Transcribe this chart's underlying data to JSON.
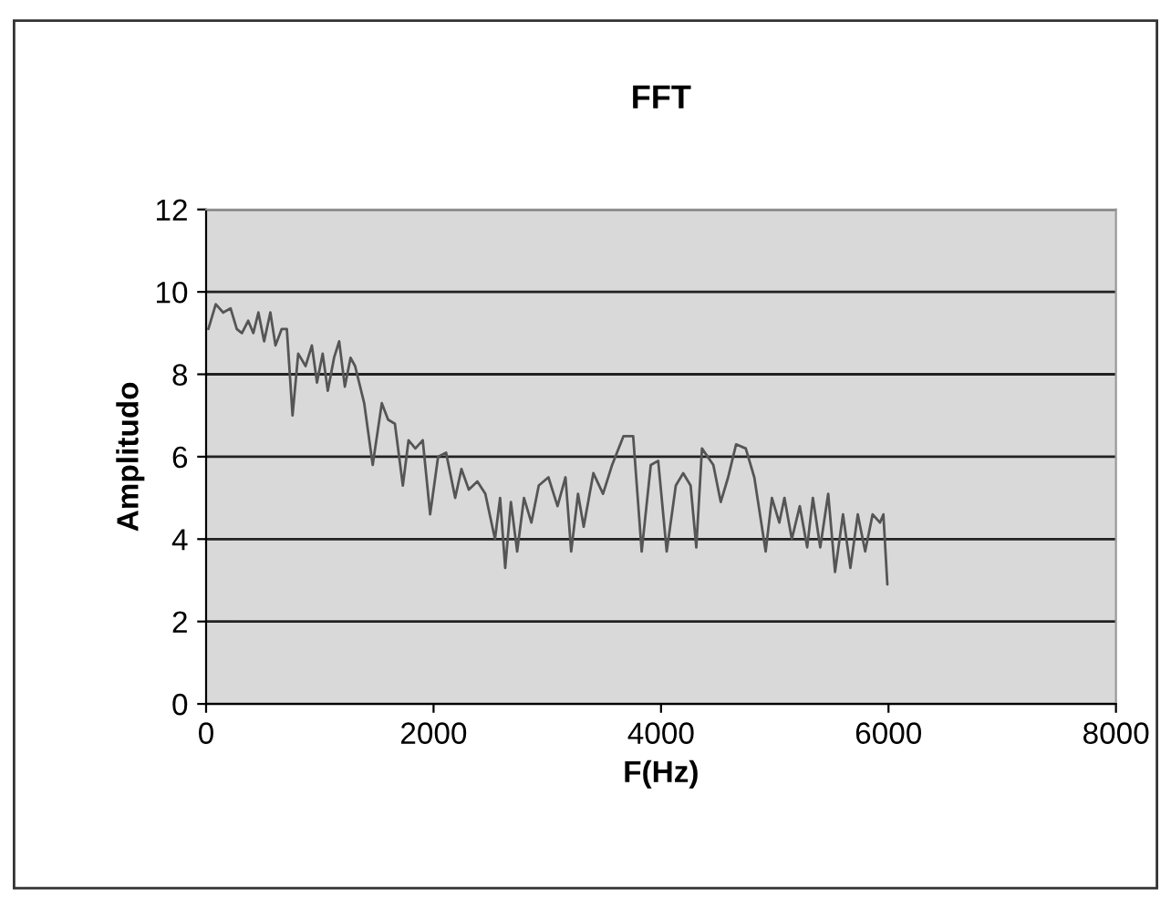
{
  "chart_data": {
    "type": "line",
    "title": "FFT",
    "xlabel": "F(Hz)",
    "ylabel": "Amplitudo",
    "xlim": [
      0,
      8000
    ],
    "xticks": [
      0,
      2000,
      4000,
      6000,
      8000
    ],
    "ylim": [
      0,
      12
    ],
    "yticks": [
      0,
      2,
      4,
      6,
      8,
      10,
      12
    ],
    "grid": "y",
    "legend": false,
    "marker": "none",
    "line_style": "solid",
    "series": [
      {
        "color": "#555555",
        "x": [
          20,
          85,
          150,
          215,
          270,
          315,
          370,
          415,
          460,
          510,
          565,
          610,
          665,
          710,
          760,
          810,
          875,
          930,
          975,
          1025,
          1070,
          1125,
          1170,
          1220,
          1270,
          1310,
          1390,
          1465,
          1545,
          1600,
          1660,
          1730,
          1780,
          1840,
          1905,
          1970,
          2040,
          2110,
          2190,
          2245,
          2310,
          2385,
          2455,
          2540,
          2585,
          2630,
          2680,
          2735,
          2795,
          2860,
          2925,
          3010,
          3090,
          3160,
          3210,
          3270,
          3320,
          3405,
          3490,
          3570,
          3670,
          3755,
          3830,
          3910,
          3975,
          4050,
          4130,
          4195,
          4260,
          4310,
          4360,
          4460,
          4525,
          4590,
          4660,
          4745,
          4820,
          4920,
          4975,
          5040,
          5085,
          5150,
          5220,
          5285,
          5335,
          5400,
          5470,
          5530,
          5600,
          5665,
          5730,
          5795,
          5860,
          5925,
          5955,
          5990
        ],
        "values": [
          9.1,
          9.7,
          9.5,
          9.6,
          9.1,
          9.0,
          9.3,
          9.0,
          9.5,
          8.8,
          9.5,
          8.7,
          9.1,
          9.1,
          7.0,
          8.5,
          8.2,
          8.7,
          7.8,
          8.5,
          7.6,
          8.4,
          8.8,
          7.7,
          8.4,
          8.2,
          7.3,
          5.8,
          7.3,
          6.9,
          6.8,
          5.3,
          6.4,
          6.2,
          6.4,
          4.6,
          6.0,
          6.1,
          5.0,
          5.7,
          5.2,
          5.4,
          5.1,
          4.0,
          5.0,
          3.3,
          4.9,
          3.7,
          5.0,
          4.4,
          5.3,
          5.5,
          4.8,
          5.5,
          3.7,
          5.1,
          4.3,
          5.6,
          5.1,
          5.8,
          6.5,
          6.5,
          3.7,
          5.8,
          5.9,
          3.7,
          5.3,
          5.6,
          5.3,
          3.8,
          6.2,
          5.8,
          4.9,
          5.5,
          6.3,
          6.2,
          5.5,
          3.7,
          5.0,
          4.4,
          5.0,
          4.0,
          4.8,
          3.8,
          5.0,
          3.8,
          5.1,
          3.2,
          4.6,
          3.3,
          4.6,
          3.7,
          4.6,
          4.4,
          4.6,
          2.9
        ]
      }
    ]
  }
}
